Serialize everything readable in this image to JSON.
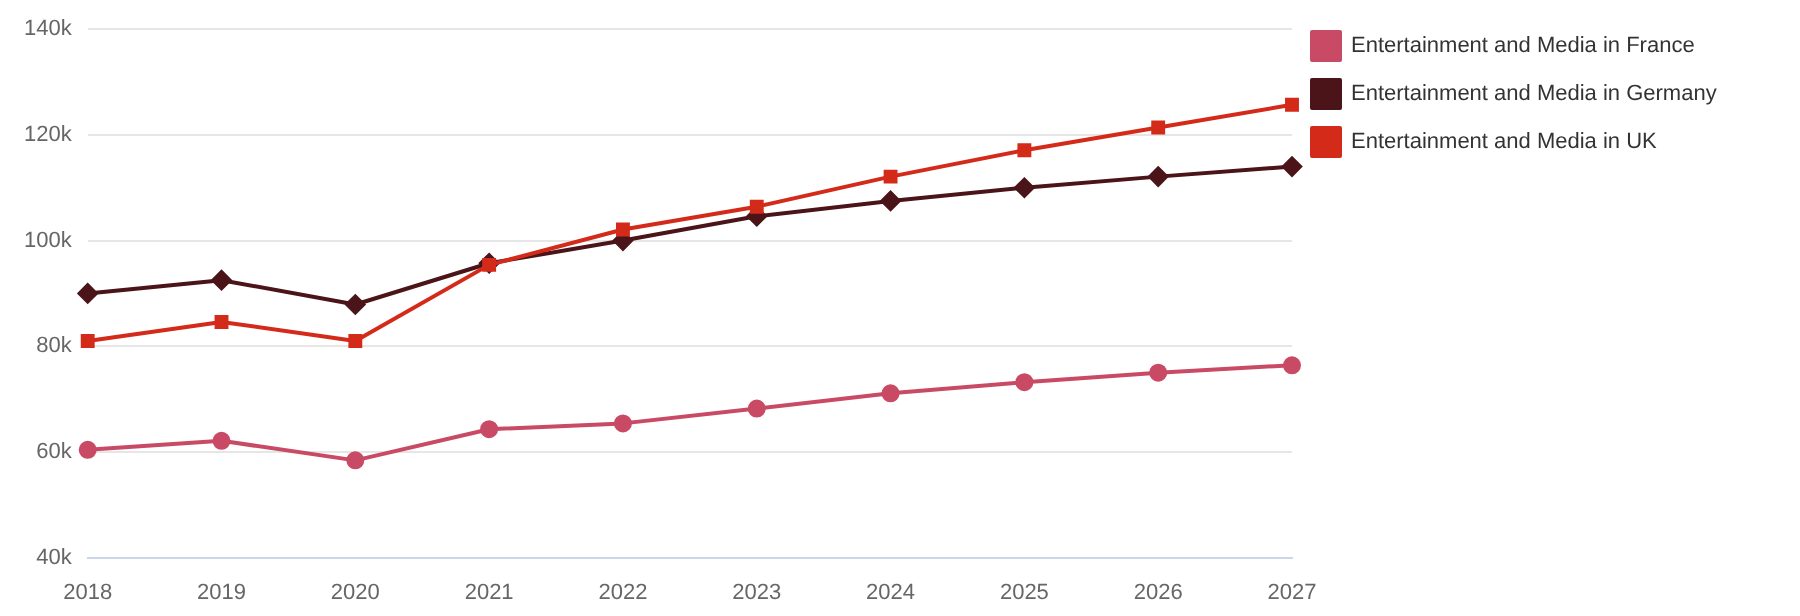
{
  "chart_data": {
    "type": "line",
    "categories": [
      "2018",
      "2019",
      "2020",
      "2021",
      "2022",
      "2023",
      "2024",
      "2025",
      "2026",
      "2027"
    ],
    "series": [
      {
        "name": "Entertainment and Media in France",
        "color": "#c94a64",
        "marker": "circle",
        "values": [
          60.4,
          62.1,
          58.4,
          64.3,
          65.4,
          68.2,
          71.1,
          73.2,
          75,
          76.4
        ]
      },
      {
        "name": "Entertainment and Media in Germany",
        "color": "#4a1418",
        "marker": "diamond",
        "values": [
          90,
          92.5,
          87.9,
          95.7,
          100,
          104.6,
          107.5,
          110,
          112.1,
          114
        ]
      },
      {
        "name": "Entertainment and Media in UK",
        "color": "#d42a1a",
        "marker": "square",
        "values": [
          81,
          84.6,
          81,
          95.4,
          102.1,
          106.4,
          112.1,
          117.1,
          121.4,
          125.7
        ]
      }
    ],
    "ylim": [
      40,
      140
    ],
    "yticks": [
      {
        "value": 40,
        "label": "40k"
      },
      {
        "value": 60,
        "label": "60k"
      },
      {
        "value": 80,
        "label": "80k"
      },
      {
        "value": 100,
        "label": "100k"
      },
      {
        "value": 120,
        "label": "120k"
      },
      {
        "value": 140,
        "label": "140k"
      }
    ],
    "grid": "y",
    "legend": "top right",
    "line_style": "solid"
  }
}
